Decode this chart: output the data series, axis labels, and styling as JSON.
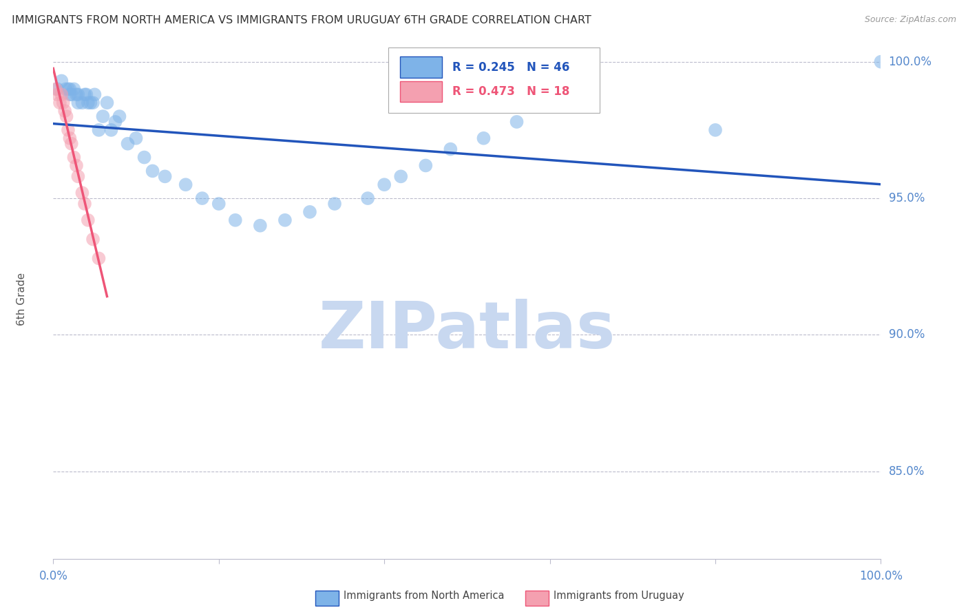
{
  "title": "IMMIGRANTS FROM NORTH AMERICA VS IMMIGRANTS FROM URUGUAY 6TH GRADE CORRELATION CHART",
  "source": "Source: ZipAtlas.com",
  "ylabel": "6th Grade",
  "ytick_labels": [
    "100.0%",
    "95.0%",
    "90.0%",
    "85.0%"
  ],
  "ytick_values": [
    1.0,
    0.95,
    0.9,
    0.85
  ],
  "xlim": [
    0.0,
    1.0
  ],
  "ylim": [
    0.818,
    1.008
  ],
  "blue_color": "#7EB3E8",
  "pink_color": "#F4A0B0",
  "blue_line_color": "#2255BB",
  "pink_line_color": "#EE5577",
  "R_blue": 0.245,
  "N_blue": 46,
  "R_pink": 0.473,
  "N_pink": 18,
  "watermark": "ZIPatlas",
  "watermark_zip_color": "#C8D8F0",
  "watermark_atlas_color": "#90B8E0",
  "background_color": "#FFFFFF",
  "grid_color": "#BBBBCC",
  "axis_label_color": "#5588CC",
  "title_color": "#333333",
  "blue_scatter_x": [
    0.005,
    0.01,
    0.015,
    0.018,
    0.02,
    0.02,
    0.022,
    0.025,
    0.028,
    0.03,
    0.03,
    0.035,
    0.038,
    0.04,
    0.042,
    0.045,
    0.048,
    0.05,
    0.055,
    0.06,
    0.065,
    0.07,
    0.075,
    0.08,
    0.09,
    0.1,
    0.11,
    0.12,
    0.135,
    0.16,
    0.18,
    0.2,
    0.22,
    0.25,
    0.28,
    0.31,
    0.34,
    0.38,
    0.4,
    0.42,
    0.45,
    0.48,
    0.52,
    0.56,
    0.8,
    1.0
  ],
  "blue_scatter_y": [
    0.99,
    0.993,
    0.99,
    0.99,
    0.99,
    0.988,
    0.988,
    0.99,
    0.988,
    0.988,
    0.985,
    0.985,
    0.988,
    0.988,
    0.985,
    0.985,
    0.985,
    0.988,
    0.975,
    0.98,
    0.985,
    0.975,
    0.978,
    0.98,
    0.97,
    0.972,
    0.965,
    0.96,
    0.958,
    0.955,
    0.95,
    0.948,
    0.942,
    0.94,
    0.942,
    0.945,
    0.948,
    0.95,
    0.955,
    0.958,
    0.962,
    0.968,
    0.972,
    0.978,
    0.975,
    1.0
  ],
  "pink_scatter_x": [
    0.003,
    0.005,
    0.008,
    0.01,
    0.012,
    0.014,
    0.016,
    0.018,
    0.02,
    0.022,
    0.025,
    0.028,
    0.03,
    0.035,
    0.038,
    0.042,
    0.048,
    0.055
  ],
  "pink_scatter_y": [
    0.99,
    0.988,
    0.985,
    0.988,
    0.985,
    0.982,
    0.98,
    0.975,
    0.972,
    0.97,
    0.965,
    0.962,
    0.958,
    0.952,
    0.948,
    0.942,
    0.935,
    0.928
  ]
}
